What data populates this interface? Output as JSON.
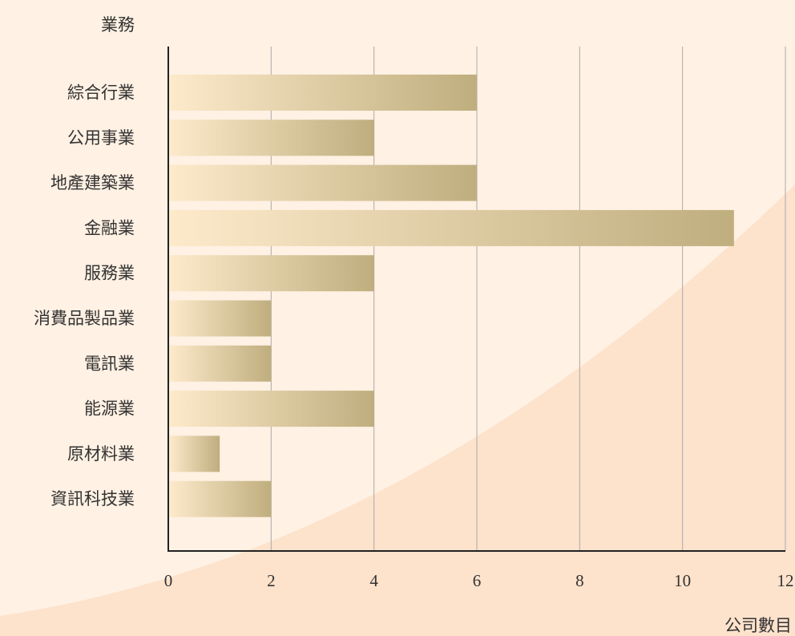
{
  "chart_data": {
    "type": "bar",
    "orientation": "horizontal",
    "categories": [
      "綜合行業",
      "公用事業",
      "地產建築業",
      "金融業",
      "服務業",
      "消費品製品業",
      "電訊業",
      "能源業",
      "原材料業",
      "資訊科技業"
    ],
    "values": [
      6,
      4,
      6,
      11,
      4,
      2,
      2,
      4,
      1,
      2
    ],
    "ylabel": "業務",
    "xlabel": "公司數目",
    "xticks": [
      0,
      2,
      4,
      6,
      8,
      10,
      12
    ],
    "xlim": [
      0,
      12
    ],
    "grid": "vertical",
    "legend": "none"
  },
  "colors": {
    "background_light": "#fff1e3",
    "background_dark": "#fde2cc",
    "bar_start": "#fdeacb",
    "bar_end": "#bfae7e",
    "gridline": "#aaaaaa",
    "axis": "#222222",
    "text": "#333333"
  }
}
